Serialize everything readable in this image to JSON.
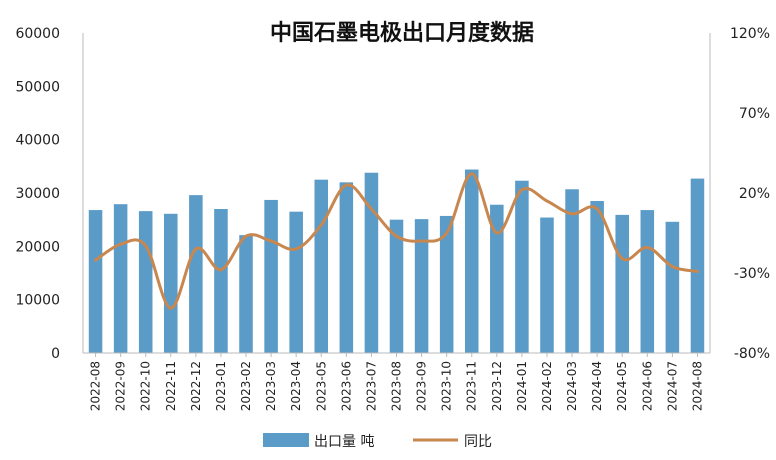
{
  "chart_data": {
    "type": "bar",
    "title": "中国石墨电极出口月度数据",
    "categories": [
      "2022-08",
      "2022-09",
      "2022-10",
      "2022-11",
      "2022-12",
      "2023-01",
      "2023-02",
      "2023-03",
      "2023-04",
      "2023-05",
      "2023-06",
      "2023-07",
      "2023-08",
      "2023-09",
      "2023-10",
      "2023-11",
      "2023-12",
      "2024-01",
      "2024-02",
      "2024-03",
      "2024-04",
      "2024-05",
      "2024-06",
      "2024-07",
      "2024-08"
    ],
    "series": [
      {
        "name": "出口量 吨",
        "type": "bar",
        "axis": "left",
        "color": "#5b9bc8",
        "values": [
          26800,
          27900,
          26600,
          26100,
          29600,
          27000,
          22100,
          28700,
          26500,
          32500,
          32000,
          33800,
          25000,
          25100,
          25700,
          34400,
          27800,
          32300,
          25400,
          30700,
          28500,
          25900,
          26800,
          24600,
          32700
        ]
      },
      {
        "name": "同比",
        "type": "line",
        "axis": "right",
        "color": "#c8874f",
        "values": [
          -22,
          -12,
          -13,
          -52,
          -15,
          -28,
          -7,
          -10,
          -15,
          0,
          25,
          10,
          -7,
          -10,
          -5,
          32,
          -5,
          22,
          15,
          7,
          10,
          -21,
          -14,
          -26,
          -29
        ]
      }
    ],
    "y_left": {
      "ticks": [
        "0",
        "10000",
        "20000",
        "30000",
        "40000",
        "50000",
        "60000"
      ],
      "ylim": [
        0,
        60000
      ]
    },
    "y_right": {
      "ticks": [
        "-80%",
        "-30%",
        "20%",
        "70%",
        "120%"
      ],
      "ylim": [
        -80,
        120
      ]
    },
    "legend": {
      "placement": "bottom",
      "items": [
        "出口量 吨",
        "同比"
      ]
    },
    "grid": false
  }
}
